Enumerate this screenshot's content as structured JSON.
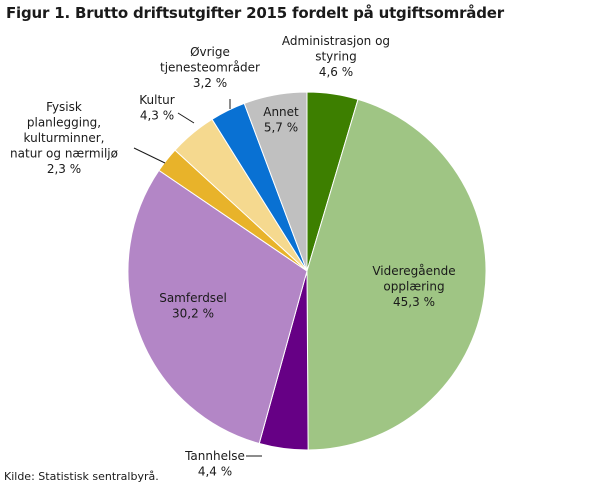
{
  "chart_data": {
    "type": "pie",
    "title": "Figur 1. Brutto driftsutgifter 2015 fordelt på utgiftsområder",
    "source": "Kilde: Statistisk sentralbyrå.",
    "slices": [
      {
        "label_lines": [
          "Administrasjon  og",
          "styring"
        ],
        "value_label": "4,6  %",
        "value": 4.6,
        "color": "#3d7f00"
      },
      {
        "label_lines": [
          "Videregående",
          "opplæring"
        ],
        "value_label": "45,3  %",
        "value": 45.3,
        "color": "#9fc584"
      },
      {
        "label_lines": [
          "Tannhelse"
        ],
        "value_label": "4,4  %",
        "value": 4.4,
        "color": "#660085"
      },
      {
        "label_lines": [
          "Samferdsel"
        ],
        "value_label": "30,2  %",
        "value": 30.2,
        "color": "#b386c6"
      },
      {
        "label_lines": [
          "Fysisk",
          "planlegging,",
          "kulturminner,",
          "natur og nærmiljø"
        ],
        "value_label": "2,3  %",
        "value": 2.3,
        "color": "#e8b32a"
      },
      {
        "label_lines": [
          "Kultur"
        ],
        "value_label": "4,3  %",
        "value": 4.3,
        "color": "#f5d98f"
      },
      {
        "label_lines": [
          "Øvrige",
          "tjenesteområder"
        ],
        "value_label": "3,2  %",
        "value": 3.2,
        "color": "#0971d3"
      },
      {
        "label_lines": [
          "Annet"
        ],
        "value_label": "5,7  %",
        "value": 5.7,
        "color": "#c0c0c0"
      }
    ]
  }
}
